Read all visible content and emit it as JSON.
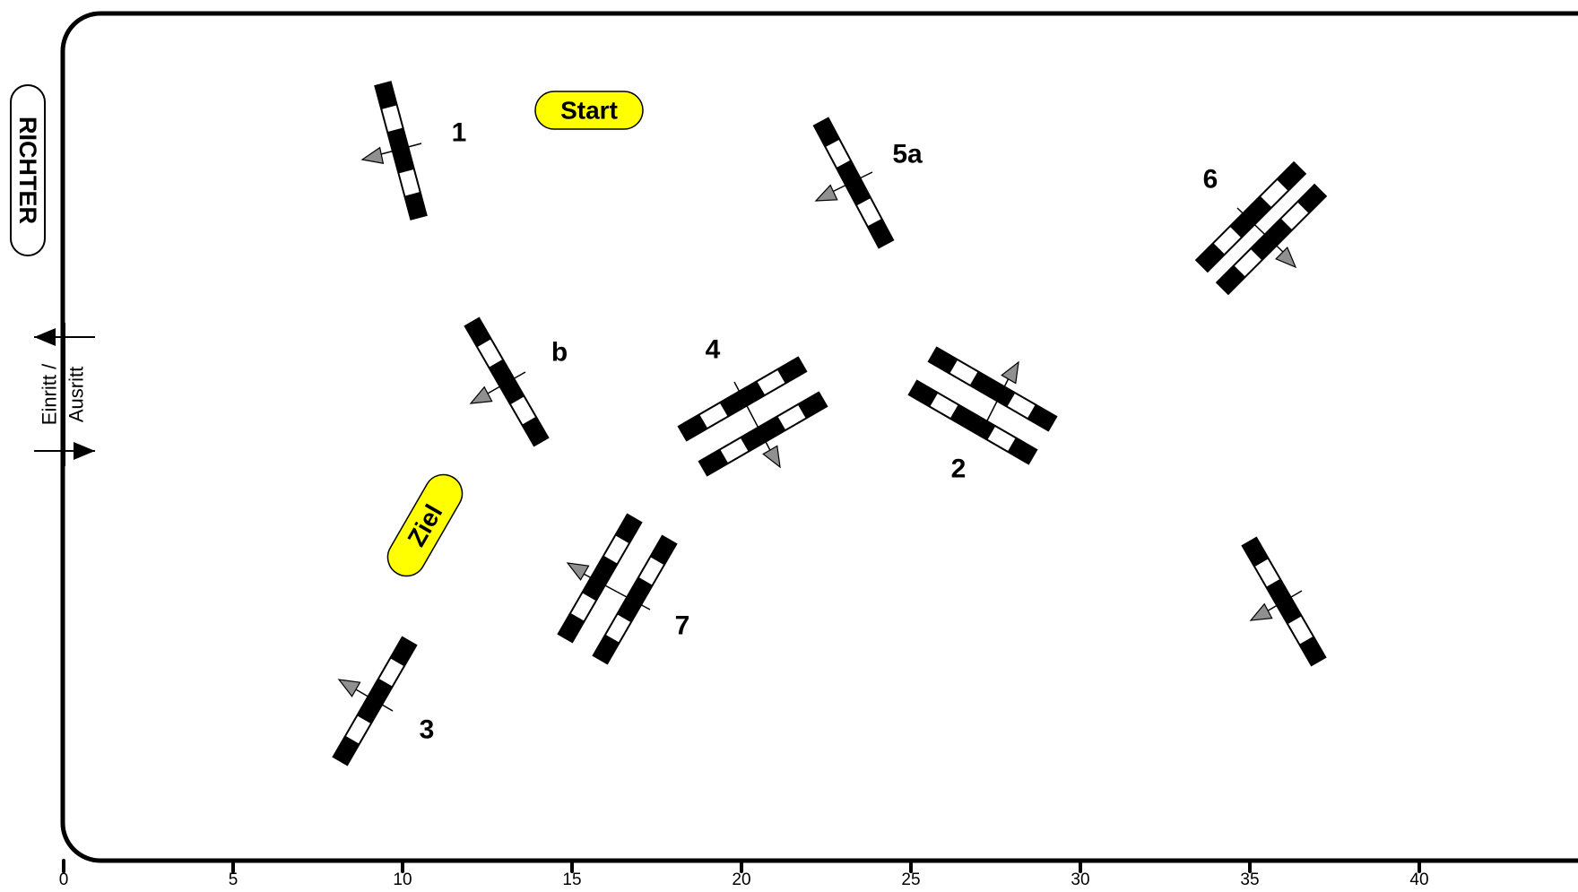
{
  "course": {
    "judge_label": "RICHTER",
    "entry_exit_label_1": "Einritt /",
    "entry_exit_label_2": "Ausritt",
    "start_label": "Start",
    "finish_label": "Ziel",
    "colors": {
      "border": "#000000",
      "rail_dark": "#000000",
      "rail_light": "#ffffff",
      "direction_arrow": "#909090",
      "badge_fill": "#ffff00"
    }
  },
  "obstacles": [
    {
      "id": "1",
      "label": "1",
      "type": "vertical"
    },
    {
      "id": "5a",
      "label": "5a",
      "type": "vertical"
    },
    {
      "id": "6",
      "label": "6",
      "type": "oxer"
    },
    {
      "id": "b",
      "label": "b",
      "type": "vertical"
    },
    {
      "id": "4",
      "label": "4",
      "type": "oxer"
    },
    {
      "id": "2",
      "label": "2",
      "type": "oxer"
    },
    {
      "id": "7",
      "label": "7",
      "type": "oxer"
    },
    {
      "id": "3",
      "label": "3",
      "type": "vertical"
    },
    {
      "id": "5b",
      "label": "",
      "type": "vertical"
    }
  ],
  "scale": {
    "unit": "m",
    "ticks": [
      "0",
      "5",
      "10",
      "15",
      "20",
      "25",
      "30",
      "35",
      "40"
    ]
  }
}
